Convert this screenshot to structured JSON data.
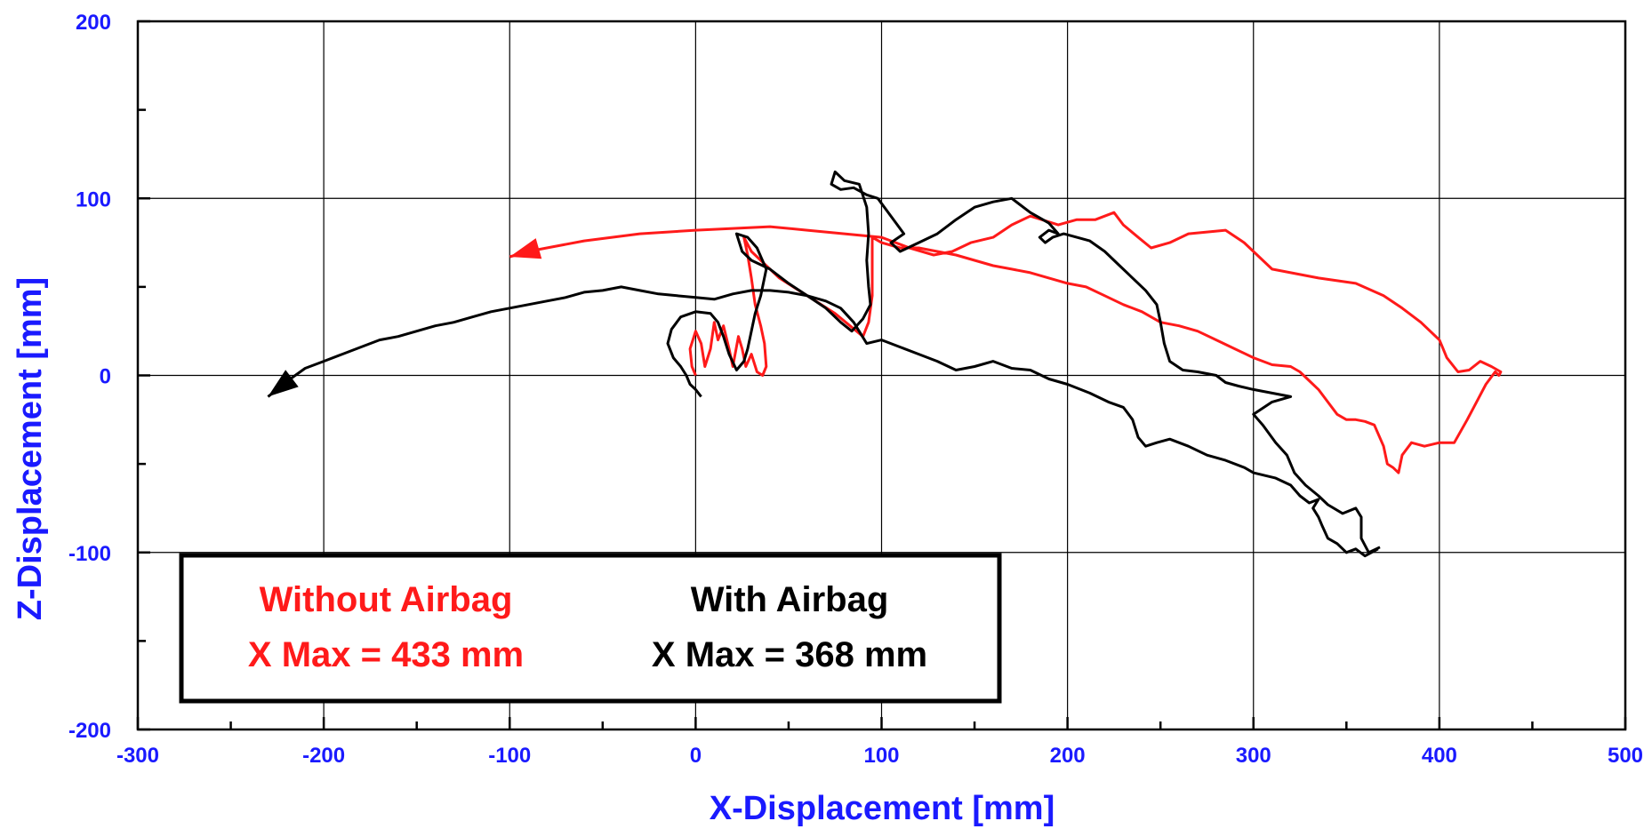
{
  "chart_data": {
    "type": "line",
    "title": "",
    "xlabel": "X-Displacement [mm]",
    "ylabel": "Z-Displacement [mm]",
    "xlim": [
      -300,
      500
    ],
    "ylim": [
      -200,
      200
    ],
    "x_ticks": [
      -300,
      -200,
      -100,
      0,
      100,
      200,
      300,
      400,
      500
    ],
    "y_ticks": [
      -200,
      -100,
      0,
      100,
      200
    ],
    "x_tick_labels": [
      "-300",
      "-200",
      "-100",
      "0",
      "100",
      "200",
      "300",
      "400",
      "500"
    ],
    "y_tick_labels": [
      "-200",
      "-100",
      "0",
      "100",
      "200"
    ],
    "grid": true,
    "axis_color": "#1a1aff",
    "legend": {
      "placement": "bottom-left",
      "entries": [
        {
          "label": "Without Airbag",
          "note": "X Max = 433 mm",
          "color": "#ff1a1a"
        },
        {
          "label": "With Airbag",
          "note": "X Max = 368 mm",
          "color": "#000000"
        }
      ]
    },
    "series": [
      {
        "name": "Without Airbag",
        "color": "#ff1a1a",
        "arrow_at_end": true,
        "points": [
          [
            0,
            0
          ],
          [
            -2,
            5
          ],
          [
            -3,
            15
          ],
          [
            0,
            25
          ],
          [
            3,
            18
          ],
          [
            5,
            5
          ],
          [
            8,
            15
          ],
          [
            10,
            30
          ],
          [
            12,
            20
          ],
          [
            15,
            28
          ],
          [
            18,
            15
          ],
          [
            20,
            5
          ],
          [
            23,
            22
          ],
          [
            25,
            15
          ],
          [
            27,
            5
          ],
          [
            30,
            12
          ],
          [
            33,
            2
          ],
          [
            36,
            0
          ],
          [
            38,
            5
          ],
          [
            37,
            18
          ],
          [
            35,
            28
          ],
          [
            32,
            40
          ],
          [
            30,
            55
          ],
          [
            28,
            68
          ],
          [
            26,
            78
          ],
          [
            30,
            70
          ],
          [
            45,
            55
          ],
          [
            60,
            45
          ],
          [
            75,
            35
          ],
          [
            90,
            22
          ],
          [
            93,
            30
          ],
          [
            95,
            45
          ],
          [
            95,
            60
          ],
          [
            95,
            70
          ],
          [
            95,
            78
          ],
          [
            100,
            75
          ],
          [
            110,
            72
          ],
          [
            120,
            72
          ],
          [
            130,
            70
          ],
          [
            140,
            68
          ],
          [
            150,
            65
          ],
          [
            160,
            62
          ],
          [
            170,
            60
          ],
          [
            180,
            58
          ],
          [
            190,
            55
          ],
          [
            200,
            52
          ],
          [
            210,
            50
          ],
          [
            220,
            45
          ],
          [
            230,
            40
          ],
          [
            240,
            36
          ],
          [
            250,
            30
          ],
          [
            260,
            28
          ],
          [
            270,
            25
          ],
          [
            280,
            20
          ],
          [
            290,
            15
          ],
          [
            300,
            10
          ],
          [
            310,
            6
          ],
          [
            320,
            5
          ],
          [
            325,
            2
          ],
          [
            330,
            -3
          ],
          [
            335,
            -8
          ],
          [
            340,
            -15
          ],
          [
            345,
            -22
          ],
          [
            350,
            -25
          ],
          [
            355,
            -25
          ],
          [
            360,
            -26
          ],
          [
            365,
            -28
          ],
          [
            370,
            -40
          ],
          [
            372,
            -50
          ],
          [
            375,
            -52
          ],
          [
            378,
            -55
          ],
          [
            380,
            -45
          ],
          [
            385,
            -38
          ],
          [
            392,
            -40
          ],
          [
            400,
            -38
          ],
          [
            408,
            -38
          ],
          [
            415,
            -25
          ],
          [
            420,
            -15
          ],
          [
            425,
            -5
          ],
          [
            430,
            2
          ],
          [
            432,
            0
          ],
          [
            433,
            2
          ],
          [
            428,
            5
          ],
          [
            422,
            8
          ],
          [
            416,
            3
          ],
          [
            410,
            2
          ],
          [
            404,
            10
          ],
          [
            402,
            15
          ],
          [
            400,
            20
          ],
          [
            390,
            30
          ],
          [
            380,
            38
          ],
          [
            370,
            45
          ],
          [
            355,
            52
          ],
          [
            335,
            55
          ],
          [
            310,
            60
          ],
          [
            295,
            75
          ],
          [
            285,
            82
          ],
          [
            265,
            80
          ],
          [
            255,
            75
          ],
          [
            245,
            72
          ],
          [
            238,
            78
          ],
          [
            230,
            85
          ],
          [
            225,
            92
          ],
          [
            215,
            88
          ],
          [
            205,
            88
          ],
          [
            195,
            85
          ],
          [
            180,
            90
          ],
          [
            170,
            85
          ],
          [
            160,
            78
          ],
          [
            148,
            75
          ],
          [
            138,
            70
          ],
          [
            128,
            68
          ],
          [
            115,
            72
          ],
          [
            100,
            78
          ],
          [
            80,
            80
          ],
          [
            60,
            82
          ],
          [
            40,
            84
          ],
          [
            20,
            83
          ],
          [
            0,
            82
          ],
          [
            -30,
            80
          ],
          [
            -60,
            76
          ],
          [
            -80,
            72
          ],
          [
            -90,
            70
          ],
          [
            -100,
            67
          ]
        ]
      },
      {
        "name": "With Airbag",
        "color": "#000000",
        "arrow_at_end": true,
        "points": [
          [
            367,
            -98
          ],
          [
            360,
            -102
          ],
          [
            355,
            -98
          ],
          [
            350,
            -100
          ],
          [
            345,
            -95
          ],
          [
            340,
            -92
          ],
          [
            337,
            -85
          ],
          [
            335,
            -80
          ],
          [
            332,
            -75
          ],
          [
            335,
            -70
          ],
          [
            330,
            -72
          ],
          [
            325,
            -68
          ],
          [
            320,
            -62
          ],
          [
            312,
            -58
          ],
          [
            300,
            -55
          ],
          [
            295,
            -52
          ],
          [
            285,
            -48
          ],
          [
            275,
            -45
          ],
          [
            265,
            -40
          ],
          [
            255,
            -36
          ],
          [
            248,
            -38
          ],
          [
            242,
            -40
          ],
          [
            238,
            -35
          ],
          [
            235,
            -25
          ],
          [
            230,
            -18
          ],
          [
            222,
            -15
          ],
          [
            212,
            -10
          ],
          [
            200,
            -5
          ],
          [
            190,
            -2
          ],
          [
            180,
            3
          ],
          [
            170,
            4
          ],
          [
            160,
            8
          ],
          [
            150,
            5
          ],
          [
            140,
            3
          ],
          [
            130,
            8
          ],
          [
            120,
            12
          ],
          [
            110,
            16
          ],
          [
            100,
            20
          ],
          [
            92,
            18
          ],
          [
            85,
            30
          ],
          [
            78,
            38
          ],
          [
            70,
            42
          ],
          [
            60,
            45
          ],
          [
            50,
            47
          ],
          [
            40,
            48
          ],
          [
            30,
            48
          ],
          [
            20,
            46
          ],
          [
            10,
            43
          ],
          [
            0,
            44
          ],
          [
            -10,
            45
          ],
          [
            -20,
            46
          ],
          [
            -30,
            48
          ],
          [
            -40,
            50
          ],
          [
            -50,
            48
          ],
          [
            -60,
            47
          ],
          [
            -70,
            44
          ],
          [
            -80,
            42
          ],
          [
            -90,
            40
          ],
          [
            -100,
            38
          ],
          [
            -110,
            36
          ],
          [
            -120,
            33
          ],
          [
            -130,
            30
          ],
          [
            -140,
            28
          ],
          [
            -150,
            25
          ],
          [
            -160,
            22
          ],
          [
            -170,
            20
          ],
          [
            -180,
            16
          ],
          [
            -190,
            12
          ],
          [
            -200,
            8
          ],
          [
            -210,
            4
          ],
          [
            -218,
            -2
          ],
          [
            -225,
            -8
          ],
          [
            -230,
            -12
          ]
        ],
        "extra_trace": [
          [
            368,
            -97
          ],
          [
            362,
            -100
          ],
          [
            358,
            -92
          ],
          [
            358,
            -80
          ],
          [
            355,
            -75
          ],
          [
            348,
            -78
          ],
          [
            340,
            -73
          ],
          [
            335,
            -68
          ],
          [
            328,
            -62
          ],
          [
            322,
            -55
          ],
          [
            318,
            -45
          ],
          [
            312,
            -38
          ],
          [
            305,
            -28
          ],
          [
            300,
            -22
          ],
          [
            310,
            -15
          ],
          [
            320,
            -12
          ],
          [
            310,
            -10
          ],
          [
            300,
            -8
          ],
          [
            292,
            -6
          ],
          [
            285,
            -4
          ],
          [
            280,
            0
          ],
          [
            270,
            2
          ],
          [
            262,
            3
          ],
          [
            255,
            8
          ],
          [
            252,
            18
          ],
          [
            250,
            30
          ],
          [
            248,
            40
          ],
          [
            242,
            48
          ],
          [
            235,
            55
          ],
          [
            228,
            62
          ],
          [
            220,
            70
          ],
          [
            212,
            76
          ],
          [
            205,
            78
          ],
          [
            198,
            80
          ],
          [
            192,
            78
          ],
          [
            188,
            75
          ],
          [
            185,
            78
          ],
          [
            190,
            82
          ],
          [
            195,
            80
          ],
          [
            190,
            86
          ],
          [
            180,
            92
          ],
          [
            170,
            100
          ],
          [
            160,
            98
          ],
          [
            150,
            95
          ],
          [
            140,
            88
          ],
          [
            130,
            80
          ],
          [
            120,
            75
          ],
          [
            110,
            70
          ],
          [
            105,
            75
          ],
          [
            112,
            80
          ],
          [
            105,
            90
          ],
          [
            98,
            100
          ],
          [
            92,
            102
          ],
          [
            85,
            106
          ],
          [
            78,
            105
          ],
          [
            73,
            108
          ],
          [
            75,
            115
          ],
          [
            80,
            110
          ],
          [
            88,
            108
          ],
          [
            92,
            95
          ],
          [
            93,
            80
          ],
          [
            92,
            65
          ],
          [
            93,
            50
          ],
          [
            94,
            40
          ],
          [
            90,
            32
          ],
          [
            84,
            25
          ],
          [
            78,
            30
          ],
          [
            70,
            38
          ],
          [
            60,
            45
          ],
          [
            50,
            52
          ],
          [
            40,
            60
          ],
          [
            30,
            65
          ],
          [
            25,
            70
          ],
          [
            22,
            80
          ],
          [
            28,
            78
          ],
          [
            33,
            72
          ],
          [
            38,
            60
          ],
          [
            35,
            45
          ],
          [
            32,
            35
          ],
          [
            30,
            25
          ],
          [
            28,
            15
          ],
          [
            26,
            8
          ],
          [
            22,
            3
          ],
          [
            18,
            12
          ],
          [
            15,
            22
          ],
          [
            12,
            30
          ],
          [
            8,
            35
          ],
          [
            0,
            36
          ],
          [
            -8,
            33
          ],
          [
            -13,
            26
          ],
          [
            -15,
            18
          ],
          [
            -12,
            10
          ],
          [
            -8,
            5
          ],
          [
            -5,
            0
          ],
          [
            -3,
            -5
          ],
          [
            0,
            -8
          ],
          [
            3,
            -12
          ]
        ]
      }
    ]
  }
}
